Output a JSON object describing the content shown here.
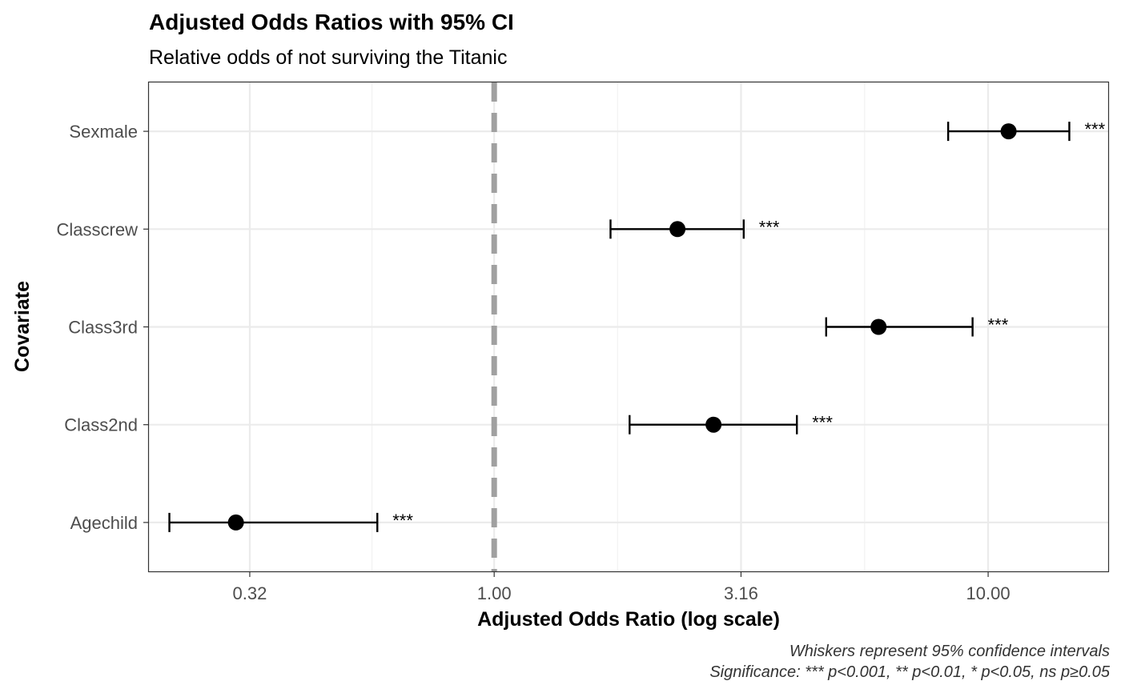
{
  "chart_data": {
    "type": "forest",
    "title": "Adjusted Odds Ratios with 95% CI",
    "subtitle": "Relative odds of not surviving the Titanic",
    "xlabel": "Adjusted Odds Ratio (log scale)",
    "ylabel": "Covariate",
    "x_scale": "log10",
    "xlim": [
      0.2,
      17.5
    ],
    "x_ticks": [
      0.32,
      1.0,
      3.16,
      10.0
    ],
    "x_tick_labels": [
      "0.32",
      "1.00",
      "3.16",
      "10.00"
    ],
    "reference_line": 1.0,
    "grid": true,
    "categories": [
      "Sexmale",
      "Classcrew",
      "Class3rd",
      "Class2nd",
      "Agechild"
    ],
    "estimates": [
      11.0,
      2.35,
      6.0,
      2.78,
      0.3
    ],
    "ci_lower": [
      8.3,
      1.72,
      4.7,
      1.88,
      0.22
    ],
    "ci_upper": [
      14.6,
      3.2,
      9.3,
      4.1,
      0.58
    ],
    "significance": [
      "***",
      "***",
      "***",
      "***",
      "***"
    ],
    "caption_lines": [
      "Whiskers represent 95% confidence intervals",
      "Significance: *** p<0.001, ** p<0.01, * p<0.05, ns p≥0.05"
    ]
  }
}
